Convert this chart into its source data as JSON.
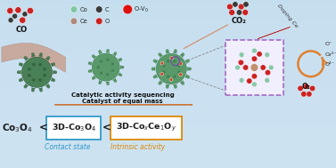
{
  "bg_gradient_top": "#c8dff0",
  "bg_gradient_bot": "#ddeefa",
  "co_label": "CO",
  "co2_label": "CO₂",
  "doping_label": "Doping Ce",
  "o_labels": [
    "O⁻",
    "O₂²⁻",
    "O²⁻"
  ],
  "o2_label": "O₂",
  "legend_co_color": "#7ec8a0",
  "legend_c_color": "#3a3a3a",
  "legend_ce_color": "#b08878",
  "legend_o_color": "#cc2222",
  "legend_ov_color": "#dd1111",
  "catalyst_color": "#5a9a6a",
  "catalyst_dark": "#3a7a4a",
  "pipe_color": "#c8a090",
  "pipe_edge": "#a88070",
  "arrow_salmon": "#f0a080",
  "arrow_orange": "#e08030",
  "box_purple": "#9955bb",
  "crystal_co_color": "#88c8a8",
  "crystal_o_color": "#cc2222",
  "crystal_ce_color": "#c09070",
  "contact_color": "#3399cc",
  "intrinsic_color": "#dd8800",
  "text_dark": "#1a1a1a",
  "arrow_label_top": "Catalytic activity sequencing",
  "arrow_label_bot": "Catalyst of equal mass",
  "label_contact": "Contact state",
  "label_intrinsic": "Intrinsic activity",
  "eq_left": "Co₃O₄",
  "eq_mid": "3D-Co₃O₄",
  "eq_right": "3D-CoₓCe₁Oₔ"
}
